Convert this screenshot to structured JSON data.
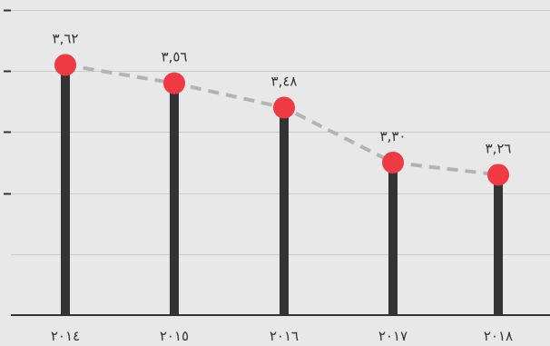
{
  "chart_data": {
    "type": "line",
    "categories": [
      "٢٠١٤",
      "٢٠١٥",
      "٢٠١٦",
      "٢٠١٧",
      "٢٠١٨"
    ],
    "values": [
      3.62,
      3.56,
      3.48,
      3.3,
      3.26
    ],
    "value_labels": [
      "٣,٦٢",
      "٣,٥٦",
      "٣,٤٨",
      "٣,٣٠",
      "٣,٢٦"
    ],
    "title": "",
    "xlabel": "",
    "ylabel": "",
    "ylim": [
      2.8,
      3.8
    ],
    "yticks": [
      3.0,
      3.2,
      3.4,
      3.6,
      3.8
    ],
    "ytick_labels_visible": false,
    "grid": true,
    "legend": "none",
    "style": "lollipop with dashed trend line",
    "colors": {
      "background": "#e8e8e8",
      "stem": "#333333",
      "marker": "#ef3a44",
      "trend": "#b3b3b3",
      "grid": "#c9c9c9",
      "text": "#333333"
    }
  }
}
